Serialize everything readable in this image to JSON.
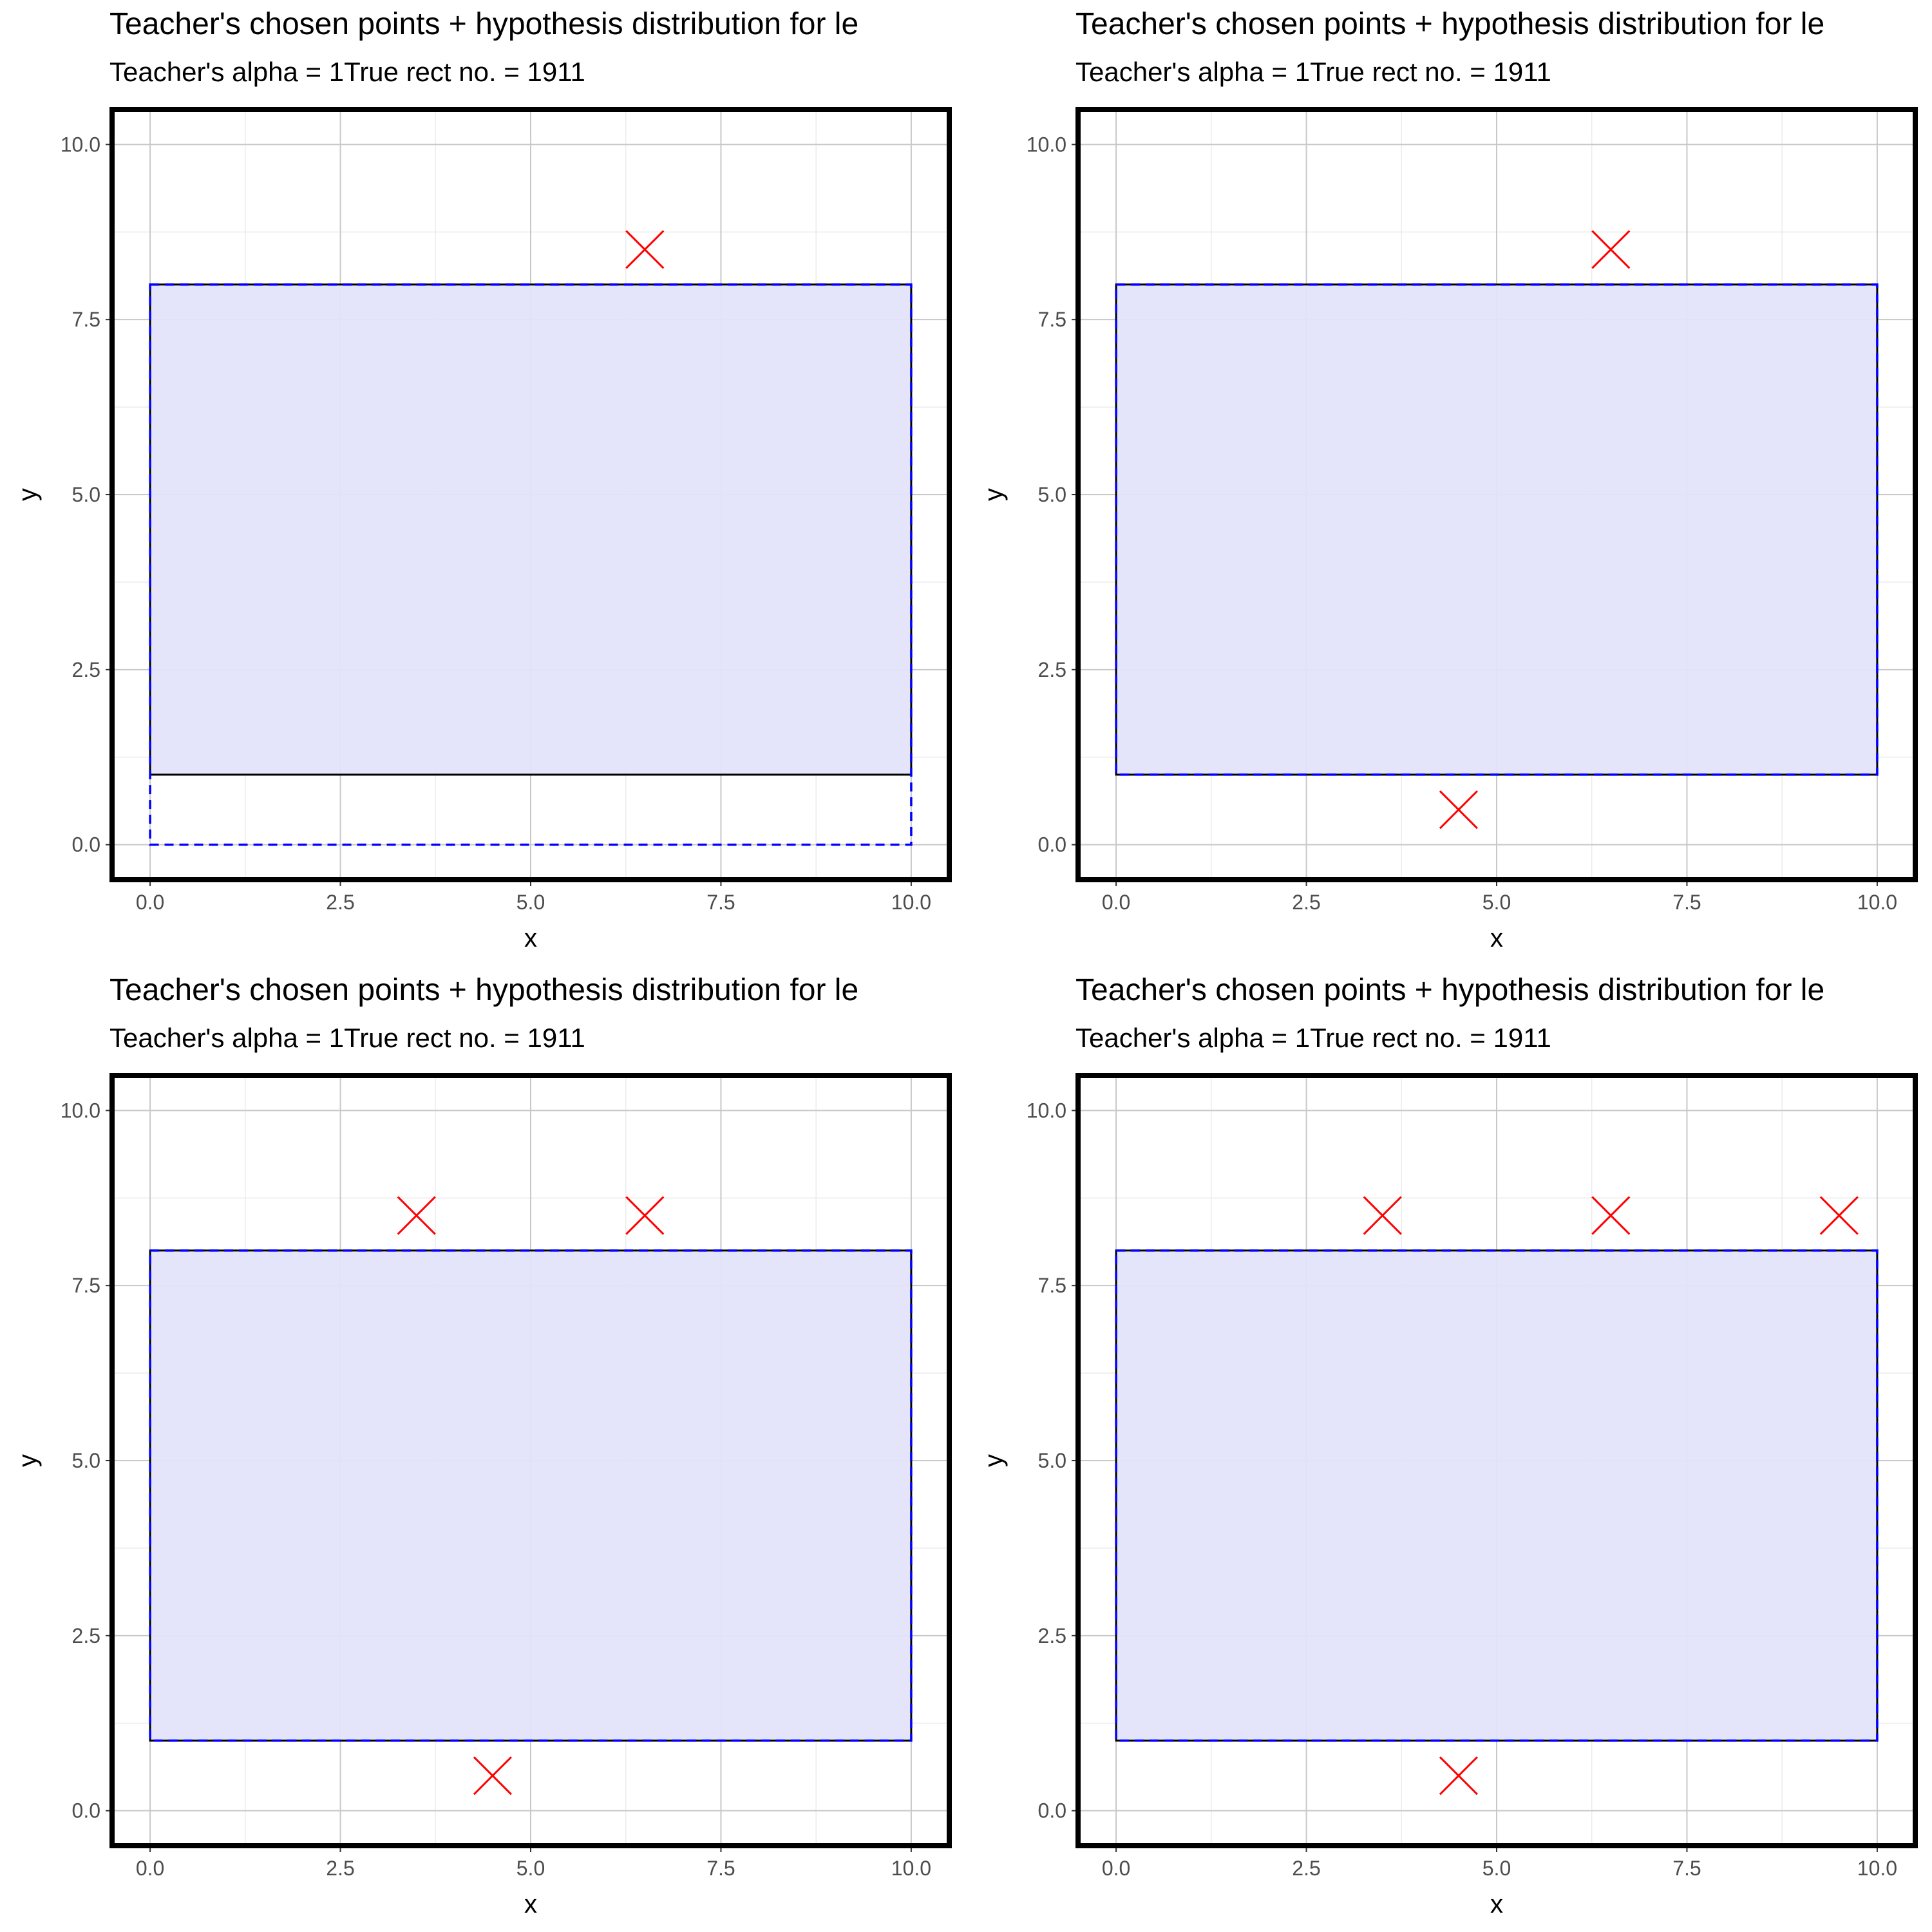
{
  "chart_data": [
    {
      "type": "scatter",
      "title": "Teacher's chosen points + hypothesis distribution for le",
      "subtitle": "Teacher's alpha = 1True rect no. = 1911",
      "xlabel": "x",
      "ylabel": "y",
      "xlim": [
        -0.5,
        10.5
      ],
      "ylim": [
        -0.5,
        10.5
      ],
      "xticks": [
        "0.0",
        "2.5",
        "5.0",
        "7.5",
        "10.0"
      ],
      "yticks": [
        "0.0",
        "2.5",
        "5.0",
        "7.5",
        "10.0"
      ],
      "grid": true,
      "true_rect": {
        "x1": 0,
        "x2": 10,
        "y1": 1,
        "y2": 8
      },
      "hypothesis_rect": {
        "x1": 0,
        "x2": 10,
        "y1": 0,
        "y2": 8
      },
      "points": [
        {
          "x": 6.5,
          "y": 8.5
        }
      ]
    },
    {
      "type": "scatter",
      "title": "Teacher's chosen points + hypothesis distribution for le",
      "subtitle": "Teacher's alpha = 1True rect no. = 1911",
      "xlabel": "x",
      "ylabel": "y",
      "xlim": [
        -0.5,
        10.5
      ],
      "ylim": [
        -0.5,
        10.5
      ],
      "xticks": [
        "0.0",
        "2.5",
        "5.0",
        "7.5",
        "10.0"
      ],
      "yticks": [
        "0.0",
        "2.5",
        "5.0",
        "7.5",
        "10.0"
      ],
      "grid": true,
      "true_rect": {
        "x1": 0,
        "x2": 10,
        "y1": 1,
        "y2": 8
      },
      "hypothesis_rect": {
        "x1": 0,
        "x2": 10,
        "y1": 1,
        "y2": 8
      },
      "points": [
        {
          "x": 6.5,
          "y": 8.5
        },
        {
          "x": 4.5,
          "y": 0.5
        }
      ]
    },
    {
      "type": "scatter",
      "title": "Teacher's chosen points + hypothesis distribution for le",
      "subtitle": "Teacher's alpha = 1True rect no. = 1911",
      "xlabel": "x",
      "ylabel": "y",
      "xlim": [
        -0.5,
        10.5
      ],
      "ylim": [
        -0.5,
        10.5
      ],
      "xticks": [
        "0.0",
        "2.5",
        "5.0",
        "7.5",
        "10.0"
      ],
      "yticks": [
        "0.0",
        "2.5",
        "5.0",
        "7.5",
        "10.0"
      ],
      "grid": true,
      "true_rect": {
        "x1": 0,
        "x2": 10,
        "y1": 1,
        "y2": 8
      },
      "hypothesis_rect": {
        "x1": 0,
        "x2": 10,
        "y1": 1,
        "y2": 8
      },
      "points": [
        {
          "x": 3.5,
          "y": 8.5
        },
        {
          "x": 6.5,
          "y": 8.5
        },
        {
          "x": 4.5,
          "y": 0.5
        }
      ]
    },
    {
      "type": "scatter",
      "title": "Teacher's chosen points + hypothesis distribution for le",
      "subtitle": "Teacher's alpha = 1True rect no. = 1911",
      "xlabel": "x",
      "ylabel": "y",
      "xlim": [
        -0.5,
        10.5
      ],
      "ylim": [
        -0.5,
        10.5
      ],
      "xticks": [
        "0.0",
        "2.5",
        "5.0",
        "7.5",
        "10.0"
      ],
      "yticks": [
        "0.0",
        "2.5",
        "5.0",
        "7.5",
        "10.0"
      ],
      "grid": true,
      "true_rect": {
        "x1": 0,
        "x2": 10,
        "y1": 1,
        "y2": 8
      },
      "hypothesis_rect": {
        "x1": 0,
        "x2": 10,
        "y1": 1,
        "y2": 8
      },
      "points": [
        {
          "x": 3.5,
          "y": 8.5
        },
        {
          "x": 6.5,
          "y": 8.5
        },
        {
          "x": 9.5,
          "y": 8.5
        },
        {
          "x": 4.5,
          "y": 0.5
        }
      ]
    }
  ],
  "colors": {
    "rect_fill": "#e3e3fb",
    "true_rect_stroke": "#000000",
    "hypothesis_stroke": "#0000ff",
    "point_color": "#ff0000",
    "grid_major": "#c8c8c8",
    "grid_minor": "#ececec",
    "panel_border": "#000000"
  },
  "icons": {
    "point_marker": "x-cross-icon"
  }
}
